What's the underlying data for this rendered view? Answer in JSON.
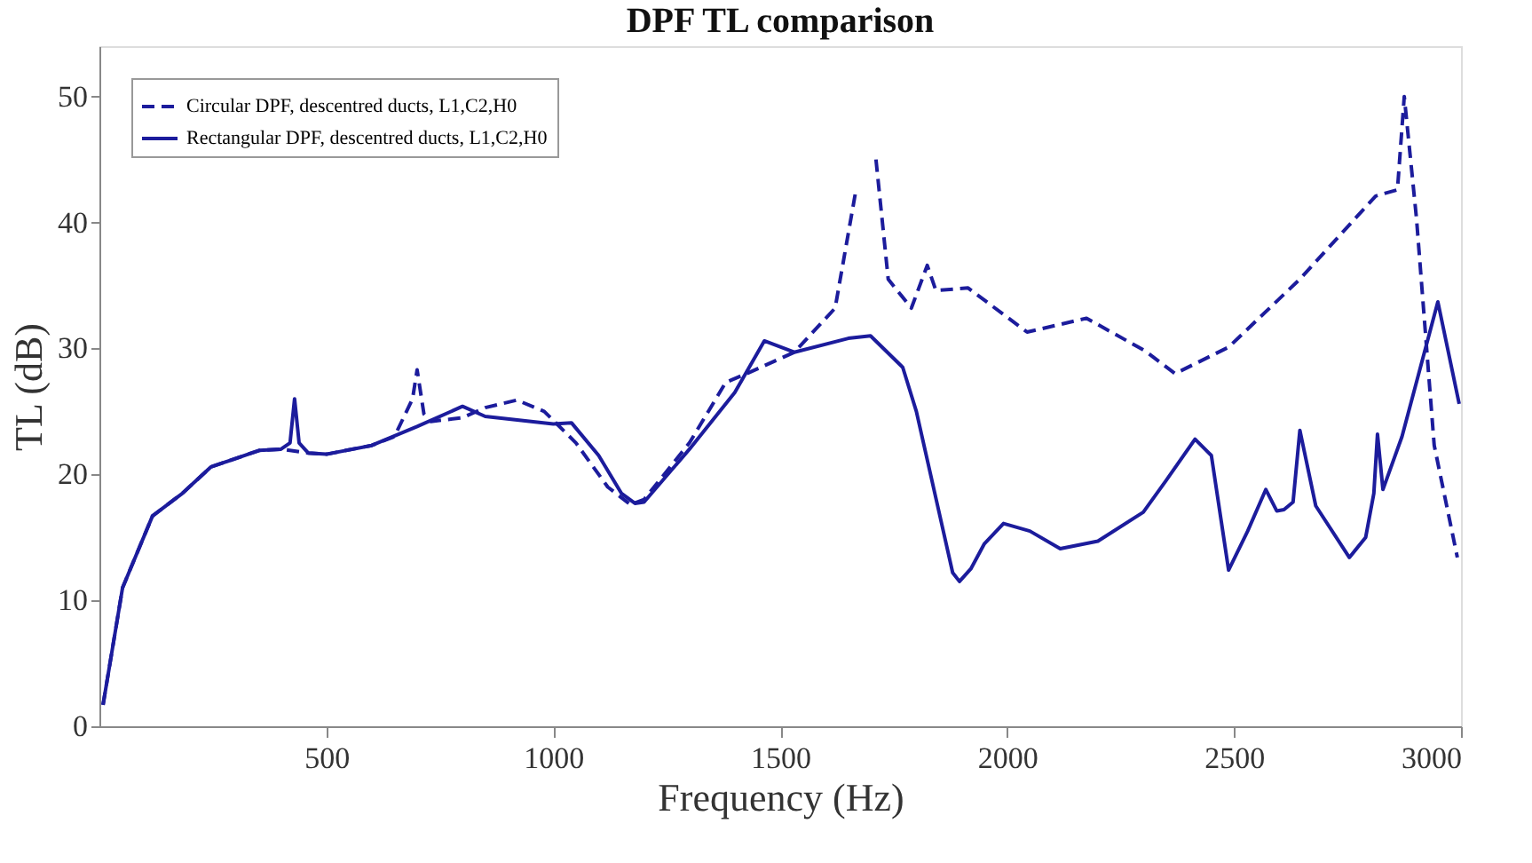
{
  "chart_data": {
    "type": "line",
    "title": "DPF TL comparison",
    "xlabel": "Frequency (Hz)",
    "ylabel": "TL (dB)",
    "xlim": [
      0,
      3000
    ],
    "ylim": [
      0,
      54
    ],
    "xticks": [
      500,
      1000,
      1500,
      2000,
      2500,
      3000
    ],
    "yticks": [
      0,
      10,
      20,
      30,
      40,
      50
    ],
    "grid": false,
    "legend": "top left",
    "marker": "none",
    "series": [
      {
        "name": "Circular DPF, descentred ducts, L1,C2,H0",
        "color": "#1c1c9c",
        "line_style": "dashed",
        "x": [
          8,
          27,
          51,
          117,
          183,
          246,
          352,
          400,
          460,
          500,
          600,
          650,
          690,
          700,
          715,
          730,
          800,
          850,
          920,
          980,
          1050,
          1120,
          1170,
          1200,
          1300,
          1380,
          1426,
          1531,
          1621,
          1667,
          1692,
          1700,
          1711,
          1738,
          1789,
          1824,
          1843,
          1914,
          2044,
          2175,
          2304,
          2370,
          2488,
          2645,
          2812,
          2860,
          2875,
          2902,
          2941,
          2992
        ],
        "values": [
          1.7,
          5.8,
          11,
          16.7,
          18.5,
          20.6,
          21.9,
          22,
          21.7,
          21.6,
          22.3,
          23,
          26,
          28.3,
          24.8,
          24.2,
          24.5,
          25.3,
          25.9,
          25,
          22.5,
          19,
          17.6,
          18,
          22.5,
          27.3,
          28,
          29.7,
          33.2,
          42.6,
          null,
          null,
          45,
          35.5,
          33.2,
          36.6,
          34.6,
          34.8,
          31.3,
          32.4,
          29.8,
          28,
          30.1,
          35.5,
          42.1,
          42.6,
          50,
          40.3,
          22.3,
          13.4
        ]
      },
      {
        "name": "Rectangular DPF, descentred ducts, L1,C2,H0",
        "color": "#1c1c9c",
        "line_style": "solid",
        "x": [
          8,
          27,
          51,
          117,
          183,
          246,
          352,
          400,
          420,
          430,
          440,
          460,
          500,
          600,
          700,
          800,
          850,
          1000,
          1040,
          1100,
          1150,
          1180,
          1200,
          1300,
          1400,
          1465,
          1531,
          1650,
          1699,
          1770,
          1800,
          1850,
          1880,
          1895,
          1920,
          1950,
          1992,
          2050,
          2117,
          2200,
          2300,
          2350,
          2414,
          2450,
          2488,
          2530,
          2570,
          2594,
          2610,
          2630,
          2645,
          2680,
          2754,
          2790,
          2808,
          2816,
          2828,
          2870,
          2949,
          2996
        ],
        "values": [
          1.7,
          5.8,
          11,
          16.7,
          18.5,
          20.6,
          21.9,
          22,
          22.5,
          26,
          22.5,
          21.7,
          21.6,
          22.3,
          23.8,
          25.4,
          24.6,
          24,
          24.1,
          21.5,
          18.5,
          17.7,
          17.8,
          22,
          26.5,
          30.6,
          29.7,
          30.8,
          31,
          28.5,
          25,
          17,
          12.2,
          11.5,
          12.5,
          14.5,
          16.1,
          15.5,
          14.1,
          14.7,
          17,
          19.5,
          22.8,
          21.5,
          12.4,
          15.5,
          18.8,
          17.1,
          17.2,
          17.8,
          23.5,
          17.5,
          13.4,
          15,
          18.5,
          23.2,
          18.8,
          23,
          33.7,
          25.6
        ]
      }
    ]
  }
}
